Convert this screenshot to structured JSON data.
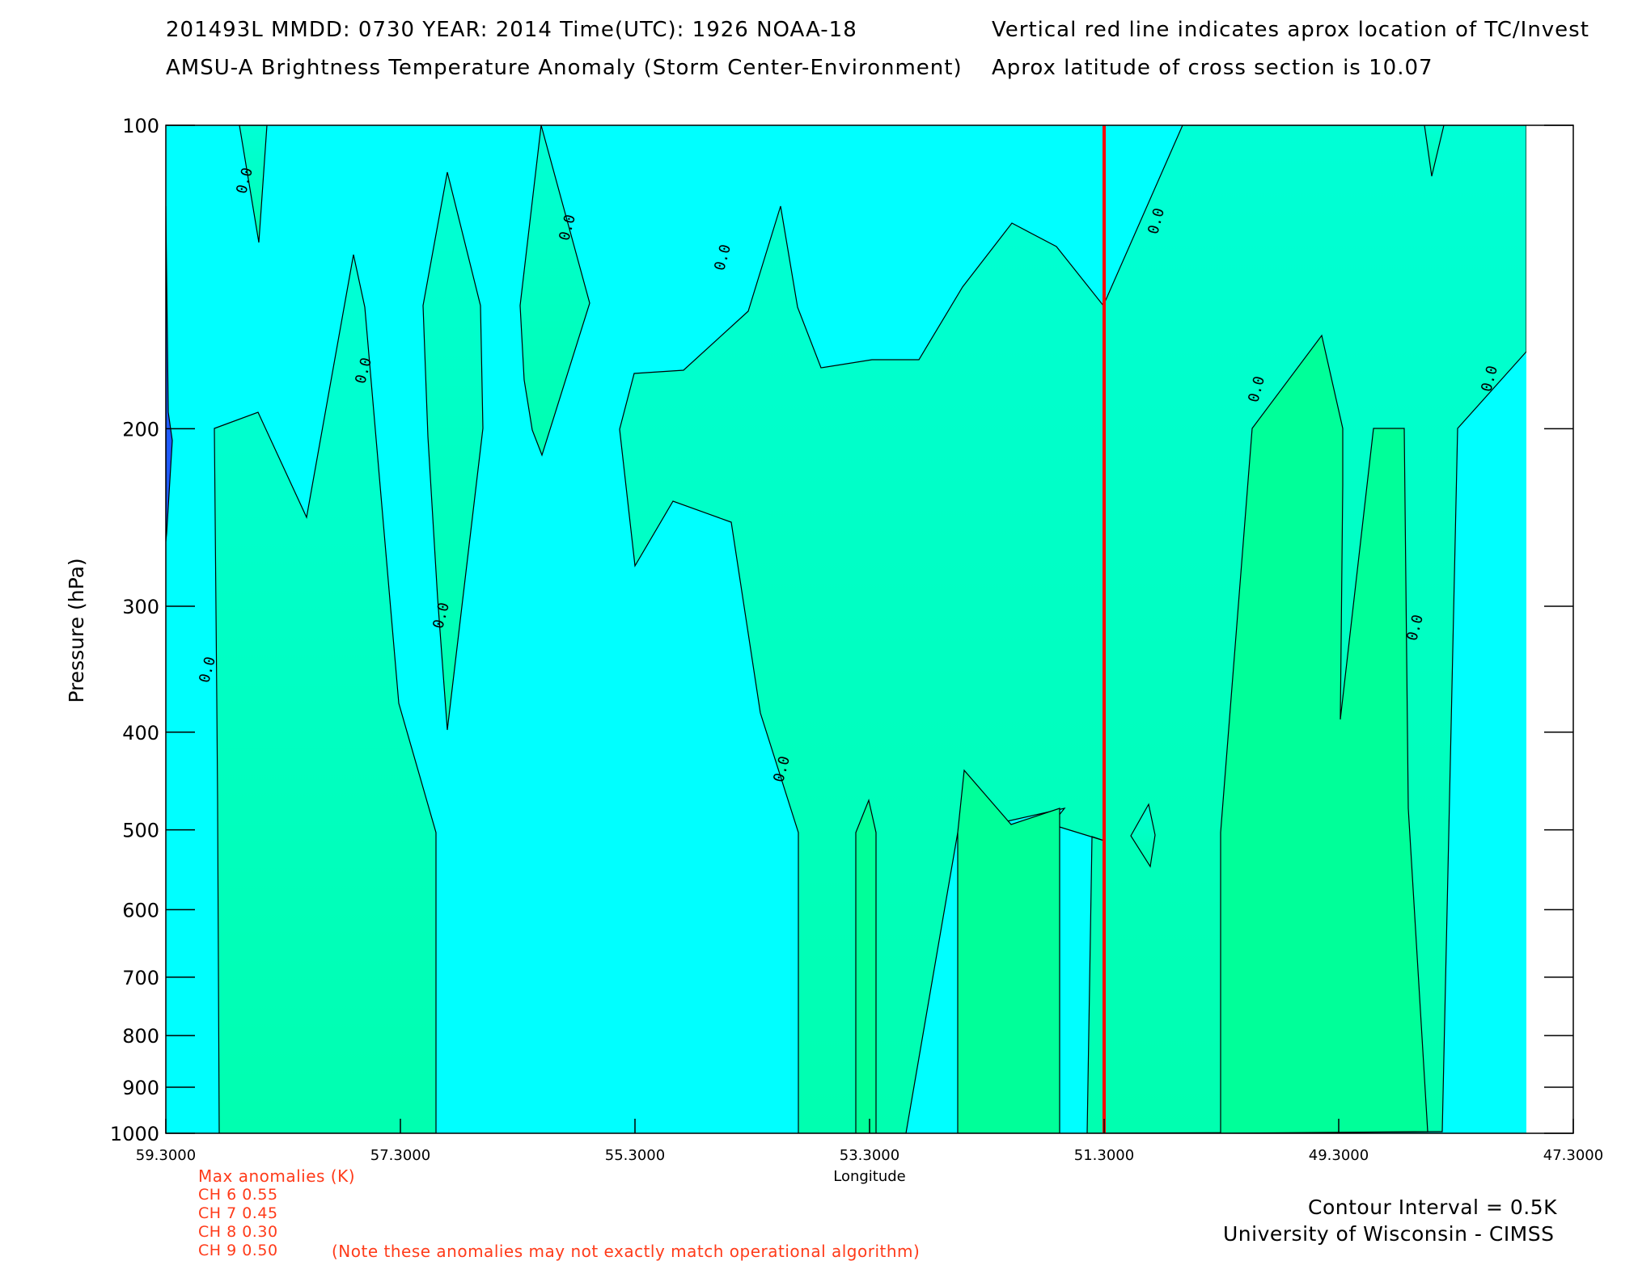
{
  "header": {
    "line1_left": "201493L  MMDD: 0730 YEAR: 2014 Time(UTC): 1926 NOAA-18",
    "line1_right": "Vertical red line indicates aprox location of TC/Invest",
    "line2_left": "AMSU-A Brightness Temperature Anomaly (Storm Center-Environment)",
    "line2_right": "Aprox latitude of cross section is 10.07"
  },
  "chart_data": {
    "type": "heatmap",
    "xlabel": "Longitude",
    "ylabel": "Pressure (hPa)",
    "x_reversed": true,
    "xlim": [
      59.3,
      47.3
    ],
    "ylim": [
      1000,
      100
    ],
    "y_scale": "log",
    "x_ticks": [
      "59.3000",
      "57.3000",
      "55.3000",
      "53.3000",
      "51.3000",
      "49.3000",
      "47.3000"
    ],
    "y_ticks": [
      "100",
      "200",
      "300",
      "400",
      "500",
      "600",
      "700",
      "800",
      "900",
      "1000"
    ],
    "contour_label": "0.0",
    "tc_line_longitude": 51.3,
    "tc_line_color": "#ff0000",
    "colors": {
      "negative_fill": "#00ffff",
      "positive_fill": "#00ffc8",
      "strong_positive_fill": "#00ff99",
      "min_anomaly": "#1f5bff",
      "contour_line": "#000000"
    }
  },
  "anomalies": {
    "title": "Max anomalies (K)",
    "channels": [
      {
        "label": "CH 6  0.55"
      },
      {
        "label": "CH 7  0.45"
      },
      {
        "label": "CH 8  0.30"
      },
      {
        "label": "CH 9  0.50"
      }
    ],
    "note": "(Note these anomalies may not exactly match operational algorithm)"
  },
  "footer": {
    "contour_interval": "Contour Interval = 0.5K",
    "credit": "University of Wisconsin - CIMSS"
  }
}
